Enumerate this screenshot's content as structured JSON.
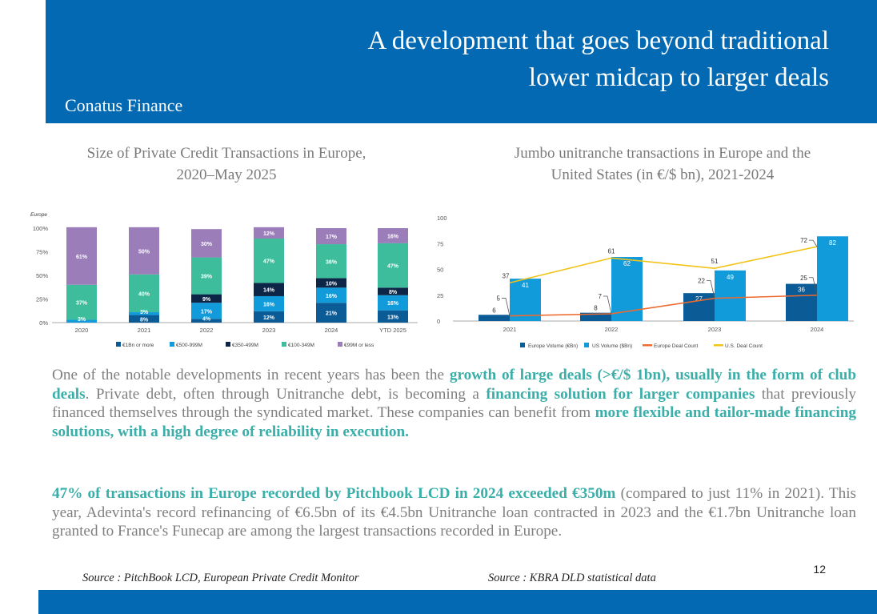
{
  "header": {
    "title_line1": "A development that goes beyond traditional",
    "title_line2": "lower midcap to larger deals",
    "brand": "Conatus Finance"
  },
  "colors": {
    "brand_blue": "#0369B3",
    "accent_teal": "#3AAEA8",
    "body_gray": "#7F7F7F"
  },
  "chart_titles": {
    "left_line1": "Size of Private Credit Transactions in Europe,",
    "left_line2": "2020–May 2025",
    "right_line1": "Jumbo unitranche transactions in Europe and the",
    "right_line2": "United States (in €/$ bn), 2021-2024"
  },
  "chart_data": [
    {
      "type": "bar",
      "stacked": true,
      "title": "Size of Private Credit Transactions in Europe, 2020–May 2025",
      "region_label": "Europe",
      "categories": [
        "2020",
        "2021",
        "2022",
        "2023",
        "2024",
        "YTD 2025"
      ],
      "ylim": [
        0,
        100
      ],
      "yticks": [
        "0%",
        "25%",
        "50%",
        "75%",
        "100%"
      ],
      "legend_position": "bottom",
      "series": [
        {
          "name": "€1Bn or more",
          "color": "#0B5C96",
          "values": [
            0,
            8,
            4,
            12,
            21,
            13
          ],
          "labels": [
            "",
            "8%",
            "4%",
            "12%",
            "21%",
            "13%"
          ]
        },
        {
          "name": "€500-999M",
          "color": "#129BDB",
          "values": [
            3,
            3,
            17,
            16,
            16,
            16
          ],
          "labels": [
            "3%",
            "3%",
            "17%",
            "16%",
            "16%",
            "16%"
          ]
        },
        {
          "name": "€350-499M",
          "color": "#0D2547",
          "values": [
            0,
            0,
            9,
            14,
            10,
            8
          ],
          "labels": [
            "",
            "",
            "9%",
            "14%",
            "10%",
            "8%"
          ]
        },
        {
          "name": "€100-349M",
          "color": "#3DBD9C",
          "values": [
            37,
            40,
            39,
            47,
            36,
            47
          ],
          "labels": [
            "37%",
            "40%",
            "39%",
            "47%",
            "36%",
            "47%"
          ]
        },
        {
          "name": "€99M or less",
          "color": "#9B7DBA",
          "values": [
            61,
            50,
            30,
            12,
            17,
            16
          ],
          "labels": [
            "61%",
            "50%",
            "30%",
            "12%",
            "17%",
            "16%"
          ]
        }
      ]
    },
    {
      "type": "bar",
      "title": "Jumbo unitranche transactions in Europe and the United States (in €/$ bn), 2021-2024",
      "categories": [
        "2021",
        "2022",
        "2023",
        "2024"
      ],
      "ylim": [
        0,
        100
      ],
      "yticks": [
        "0",
        "25",
        "50",
        "75",
        "100"
      ],
      "legend_position": "bottom",
      "bar_series": [
        {
          "name": "Europe Volume (€Bn)",
          "color": "#0B5C96",
          "values": [
            6,
            8,
            27,
            36
          ]
        },
        {
          "name": "US Volume ($Bn)",
          "color": "#129BDB",
          "values": [
            41,
            62,
            49,
            82
          ]
        }
      ],
      "line_series": [
        {
          "name": "Europe Deal Count",
          "color": "#EE6A2E",
          "values": [
            5,
            7,
            22,
            25
          ]
        },
        {
          "name": "U.S. Deal Count",
          "color": "#F2C318",
          "values": [
            37,
            61,
            51,
            72
          ]
        }
      ]
    }
  ],
  "body": {
    "p1": [
      {
        "t": "One of the notable developments in recent years has been the ",
        "b": false
      },
      {
        "t": "growth of large deals (>€/$ 1bn), usually in the form of club deals",
        "b": true
      },
      {
        "t": ". Private debt, often through Unitranche debt, is becoming a ",
        "b": false
      },
      {
        "t": "financing solution for larger companies",
        "b": true
      },
      {
        "t": " that previously financed themselves through the syndicated market. These companies can benefit from ",
        "b": false
      },
      {
        "t": "more flexible and tailor-made financing solutions, with a high degree of reliability in execution.",
        "b": true
      }
    ],
    "p2": [
      {
        "t": "47% of transactions in Europe recorded by Pitchbook LCD in 2024 exceeded €350m",
        "b": true
      },
      {
        "t": " (compared to just 11% in 2021). This year, Adevinta's record refinancing of €6.5bn of its €4.5bn Unitranche loan contracted in 2023 and the €1.7bn Unitranche loan granted to France's Funecap are among the largest transactions recorded in Europe.",
        "b": false
      }
    ]
  },
  "sources": {
    "left": "Source : PitchBook LCD, European Private Credit Monitor",
    "right": "Source : KBRA DLD statistical data"
  },
  "page_number": "12"
}
